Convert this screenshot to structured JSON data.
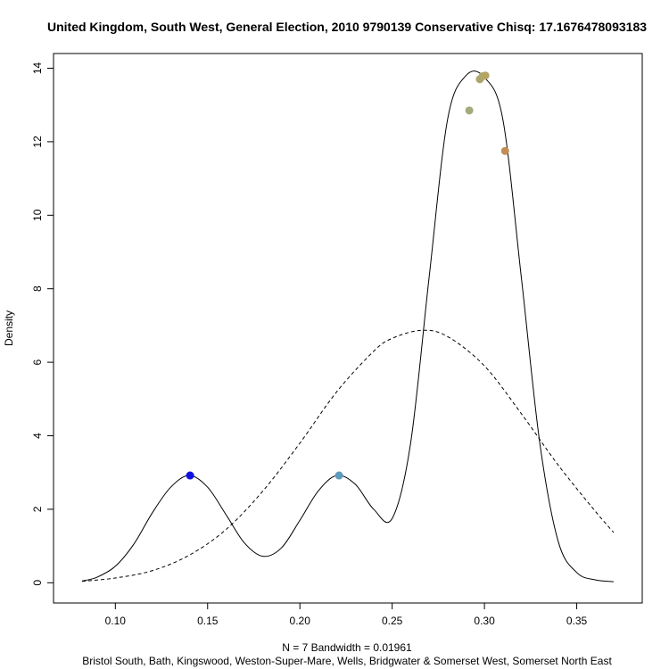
{
  "chart_data": {
    "type": "line",
    "title": "United Kingdom, South West, General Election, 2010 9790139 Conservative Chisq: 17.1676478093183",
    "xlabel": "N = 7   Bandwidth = 0.01961",
    "subtitle": "Bristol South, Bath, Kingswood, Weston-Super-Mare, Wells, Bridgwater & Somerset West, Somerset North East",
    "ylabel": "Density",
    "xlim": [
      0.0665,
      0.3855
    ],
    "ylim": [
      -0.55,
      14.4
    ],
    "x_ticks": [
      "0.10",
      "0.15",
      "0.20",
      "0.25",
      "0.30",
      "0.35"
    ],
    "y_ticks": [
      "0",
      "2",
      "4",
      "6",
      "8",
      "10",
      "12",
      "14"
    ],
    "bandwidth": 0.01961,
    "observations": [
      0.1405,
      0.2212,
      0.2918,
      0.2975,
      0.299,
      0.3005,
      0.3112
    ],
    "series": [
      {
        "style": "solid",
        "x": [
          0.082,
          0.09,
          0.1,
          0.11,
          0.12,
          0.13,
          0.14,
          0.15,
          0.16,
          0.17,
          0.18,
          0.19,
          0.2,
          0.21,
          0.22,
          0.23,
          0.24,
          0.25,
          0.26,
          0.27,
          0.28,
          0.29,
          0.3,
          0.31,
          0.32,
          0.33,
          0.34,
          0.35,
          0.36,
          0.37
        ],
        "y": [
          0.05,
          0.15,
          0.45,
          1.05,
          1.9,
          2.6,
          2.92,
          2.6,
          1.85,
          1.08,
          0.72,
          0.95,
          1.7,
          2.5,
          2.92,
          2.68,
          2.0,
          1.75,
          3.8,
          8.3,
          12.6,
          13.8,
          13.75,
          12.6,
          8.3,
          3.8,
          1.12,
          0.28,
          0.08,
          0.03
        ]
      },
      {
        "style": "dashed",
        "x": [
          0.082,
          0.1,
          0.12,
          0.14,
          0.16,
          0.18,
          0.2,
          0.22,
          0.24,
          0.25,
          0.266,
          0.28,
          0.3,
          0.32,
          0.34,
          0.36,
          0.37
        ],
        "y": [
          0.04,
          0.13,
          0.33,
          0.75,
          1.45,
          2.5,
          3.8,
          5.2,
          6.3,
          6.65,
          6.87,
          6.7,
          5.9,
          4.6,
          3.2,
          1.95,
          1.37
        ]
      }
    ],
    "points": [
      {
        "x": 0.1405,
        "y": 2.92,
        "color": "#1010e0"
      },
      {
        "x": 0.2212,
        "y": 2.92,
        "color": "#5f9bc0"
      },
      {
        "x": 0.2918,
        "y": 12.85,
        "color": "#a3ab7c"
      },
      {
        "x": 0.2975,
        "y": 13.7,
        "color": "#aaa56f"
      },
      {
        "x": 0.299,
        "y": 13.78,
        "color": "#aea66a"
      },
      {
        "x": 0.3005,
        "y": 13.8,
        "color": "#b3a463"
      },
      {
        "x": 0.3112,
        "y": 11.75,
        "color": "#c08e55"
      }
    ]
  }
}
